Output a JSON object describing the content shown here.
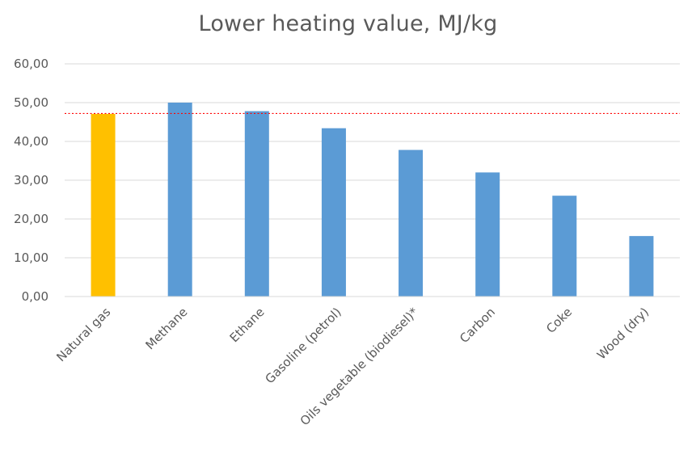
{
  "chart_data": {
    "type": "bar",
    "title": "Lower heating value, MJ/kg",
    "xlabel": "",
    "ylabel": "",
    "ylim": [
      0,
      60
    ],
    "yticks": [
      "0,00",
      "10,00",
      "20,00",
      "30,00",
      "40,00",
      "50,00",
      "60,00"
    ],
    "ytick_values": [
      0,
      10,
      20,
      30,
      40,
      50,
      60
    ],
    "grid": true,
    "legend": "none",
    "categories": [
      "Natural gas",
      "Methane",
      "Ethane",
      "Gasoline (petrol)",
      "Oils vegetable (biodiesel)*",
      "Carbon",
      "Coke",
      "Wood (dry)"
    ],
    "values": [
      47.1,
      50.0,
      47.8,
      43.4,
      37.8,
      32.0,
      26.0,
      15.6
    ],
    "colors": [
      "#FFC000",
      "#5B9BD5",
      "#5B9BD5",
      "#5B9BD5",
      "#5B9BD5",
      "#5B9BD5",
      "#5B9BD5",
      "#5B9BD5"
    ],
    "reference_line": {
      "value": 47.2,
      "color": "#FF0000",
      "style": "dotted"
    },
    "gridline_color": "#D9D9D9"
  }
}
